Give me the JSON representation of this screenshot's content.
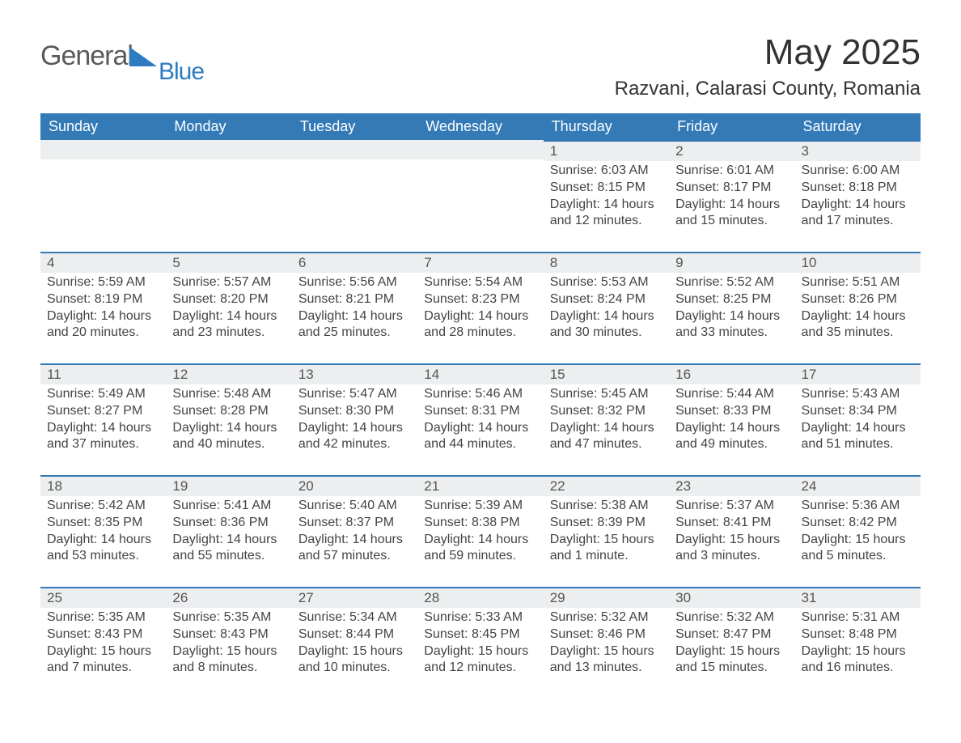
{
  "brand": {
    "word1": "General",
    "word2": "Blue"
  },
  "title": "May 2025",
  "location": "Razvani, Calarasi County, Romania",
  "colors": {
    "header_bg": "#337ab7",
    "header_text": "#ffffff",
    "daybar_bg": "#eceeef",
    "daybar_border": "#337ab7",
    "body_bg": "#ffffff",
    "text": "#444444",
    "brand_gray": "#5a5a5a",
    "brand_blue": "#2d7cc1"
  },
  "typography": {
    "title_fontsize": 44,
    "subtitle_fontsize": 24,
    "header_fontsize": 18,
    "daynum_fontsize": 17,
    "cell_fontsize": 16,
    "font_family": "Arial"
  },
  "layout": {
    "columns": 7,
    "rows": 5,
    "week_start": "Sunday"
  },
  "weekdays": [
    "Sunday",
    "Monday",
    "Tuesday",
    "Wednesday",
    "Thursday",
    "Friday",
    "Saturday"
  ],
  "weeks": [
    [
      null,
      null,
      null,
      null,
      {
        "n": "1",
        "sunrise": "6:03 AM",
        "sunset": "8:15 PM",
        "daylight": "14 hours and 12 minutes."
      },
      {
        "n": "2",
        "sunrise": "6:01 AM",
        "sunset": "8:17 PM",
        "daylight": "14 hours and 15 minutes."
      },
      {
        "n": "3",
        "sunrise": "6:00 AM",
        "sunset": "8:18 PM",
        "daylight": "14 hours and 17 minutes."
      }
    ],
    [
      {
        "n": "4",
        "sunrise": "5:59 AM",
        "sunset": "8:19 PM",
        "daylight": "14 hours and 20 minutes."
      },
      {
        "n": "5",
        "sunrise": "5:57 AM",
        "sunset": "8:20 PM",
        "daylight": "14 hours and 23 minutes."
      },
      {
        "n": "6",
        "sunrise": "5:56 AM",
        "sunset": "8:21 PM",
        "daylight": "14 hours and 25 minutes."
      },
      {
        "n": "7",
        "sunrise": "5:54 AM",
        "sunset": "8:23 PM",
        "daylight": "14 hours and 28 minutes."
      },
      {
        "n": "8",
        "sunrise": "5:53 AM",
        "sunset": "8:24 PM",
        "daylight": "14 hours and 30 minutes."
      },
      {
        "n": "9",
        "sunrise": "5:52 AM",
        "sunset": "8:25 PM",
        "daylight": "14 hours and 33 minutes."
      },
      {
        "n": "10",
        "sunrise": "5:51 AM",
        "sunset": "8:26 PM",
        "daylight": "14 hours and 35 minutes."
      }
    ],
    [
      {
        "n": "11",
        "sunrise": "5:49 AM",
        "sunset": "8:27 PM",
        "daylight": "14 hours and 37 minutes."
      },
      {
        "n": "12",
        "sunrise": "5:48 AM",
        "sunset": "8:28 PM",
        "daylight": "14 hours and 40 minutes."
      },
      {
        "n": "13",
        "sunrise": "5:47 AM",
        "sunset": "8:30 PM",
        "daylight": "14 hours and 42 minutes."
      },
      {
        "n": "14",
        "sunrise": "5:46 AM",
        "sunset": "8:31 PM",
        "daylight": "14 hours and 44 minutes."
      },
      {
        "n": "15",
        "sunrise": "5:45 AM",
        "sunset": "8:32 PM",
        "daylight": "14 hours and 47 minutes."
      },
      {
        "n": "16",
        "sunrise": "5:44 AM",
        "sunset": "8:33 PM",
        "daylight": "14 hours and 49 minutes."
      },
      {
        "n": "17",
        "sunrise": "5:43 AM",
        "sunset": "8:34 PM",
        "daylight": "14 hours and 51 minutes."
      }
    ],
    [
      {
        "n": "18",
        "sunrise": "5:42 AM",
        "sunset": "8:35 PM",
        "daylight": "14 hours and 53 minutes."
      },
      {
        "n": "19",
        "sunrise": "5:41 AM",
        "sunset": "8:36 PM",
        "daylight": "14 hours and 55 minutes."
      },
      {
        "n": "20",
        "sunrise": "5:40 AM",
        "sunset": "8:37 PM",
        "daylight": "14 hours and 57 minutes."
      },
      {
        "n": "21",
        "sunrise": "5:39 AM",
        "sunset": "8:38 PM",
        "daylight": "14 hours and 59 minutes."
      },
      {
        "n": "22",
        "sunrise": "5:38 AM",
        "sunset": "8:39 PM",
        "daylight": "15 hours and 1 minute."
      },
      {
        "n": "23",
        "sunrise": "5:37 AM",
        "sunset": "8:41 PM",
        "daylight": "15 hours and 3 minutes."
      },
      {
        "n": "24",
        "sunrise": "5:36 AM",
        "sunset": "8:42 PM",
        "daylight": "15 hours and 5 minutes."
      }
    ],
    [
      {
        "n": "25",
        "sunrise": "5:35 AM",
        "sunset": "8:43 PM",
        "daylight": "15 hours and 7 minutes."
      },
      {
        "n": "26",
        "sunrise": "5:35 AM",
        "sunset": "8:43 PM",
        "daylight": "15 hours and 8 minutes."
      },
      {
        "n": "27",
        "sunrise": "5:34 AM",
        "sunset": "8:44 PM",
        "daylight": "15 hours and 10 minutes."
      },
      {
        "n": "28",
        "sunrise": "5:33 AM",
        "sunset": "8:45 PM",
        "daylight": "15 hours and 12 minutes."
      },
      {
        "n": "29",
        "sunrise": "5:32 AM",
        "sunset": "8:46 PM",
        "daylight": "15 hours and 13 minutes."
      },
      {
        "n": "30",
        "sunrise": "5:32 AM",
        "sunset": "8:47 PM",
        "daylight": "15 hours and 15 minutes."
      },
      {
        "n": "31",
        "sunrise": "5:31 AM",
        "sunset": "8:48 PM",
        "daylight": "15 hours and 16 minutes."
      }
    ]
  ],
  "labels": {
    "sunrise": "Sunrise: ",
    "sunset": "Sunset: ",
    "daylight": "Daylight: "
  }
}
